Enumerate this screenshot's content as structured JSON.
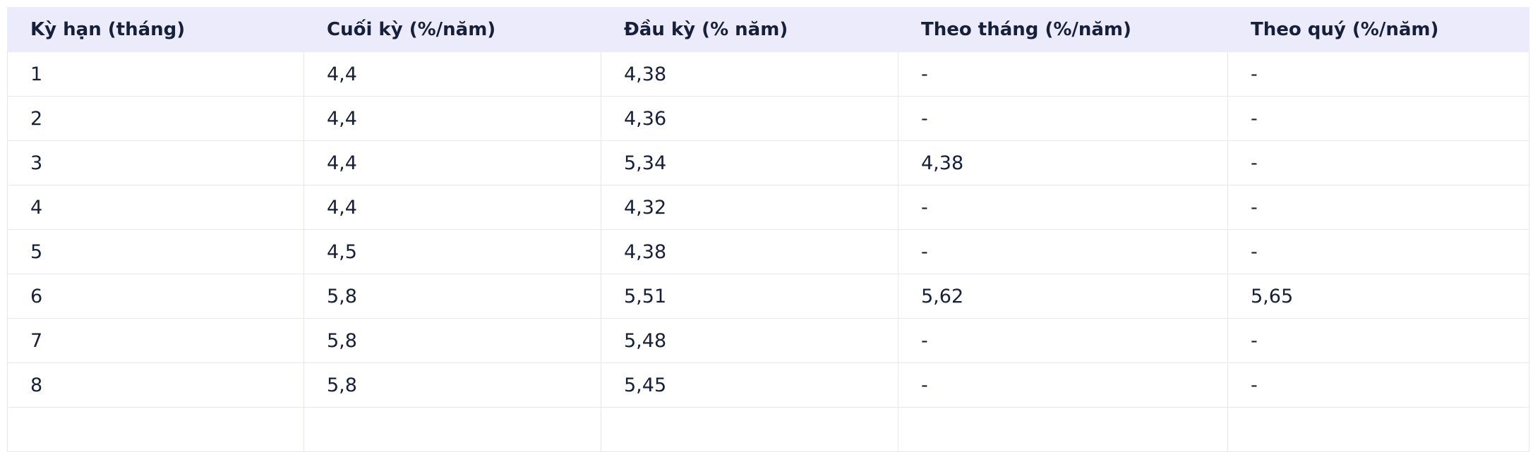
{
  "table": {
    "headers": [
      "Kỳ hạn (tháng)",
      "Cuối kỳ (%/năm)",
      "Đầu kỳ (% năm)",
      "Theo tháng (%/năm)",
      "Theo quý (%/năm)"
    ],
    "rows": [
      [
        "1",
        "4,4",
        "4,38",
        "-",
        "-"
      ],
      [
        "2",
        "4,4",
        "4,36",
        "-",
        "-"
      ],
      [
        "3",
        "4,4",
        "5,34",
        "4,38",
        "-"
      ],
      [
        "4",
        "4,4",
        "4,32",
        "-",
        "-"
      ],
      [
        "5",
        "4,5",
        "4,38",
        "-",
        "-"
      ],
      [
        "6",
        "5,8",
        "5,51",
        "5,62",
        "5,65"
      ],
      [
        "7",
        "5,8",
        "5,48",
        "-",
        "-"
      ],
      [
        "8",
        "5,8",
        "5,45",
        "-",
        "-"
      ]
    ]
  }
}
